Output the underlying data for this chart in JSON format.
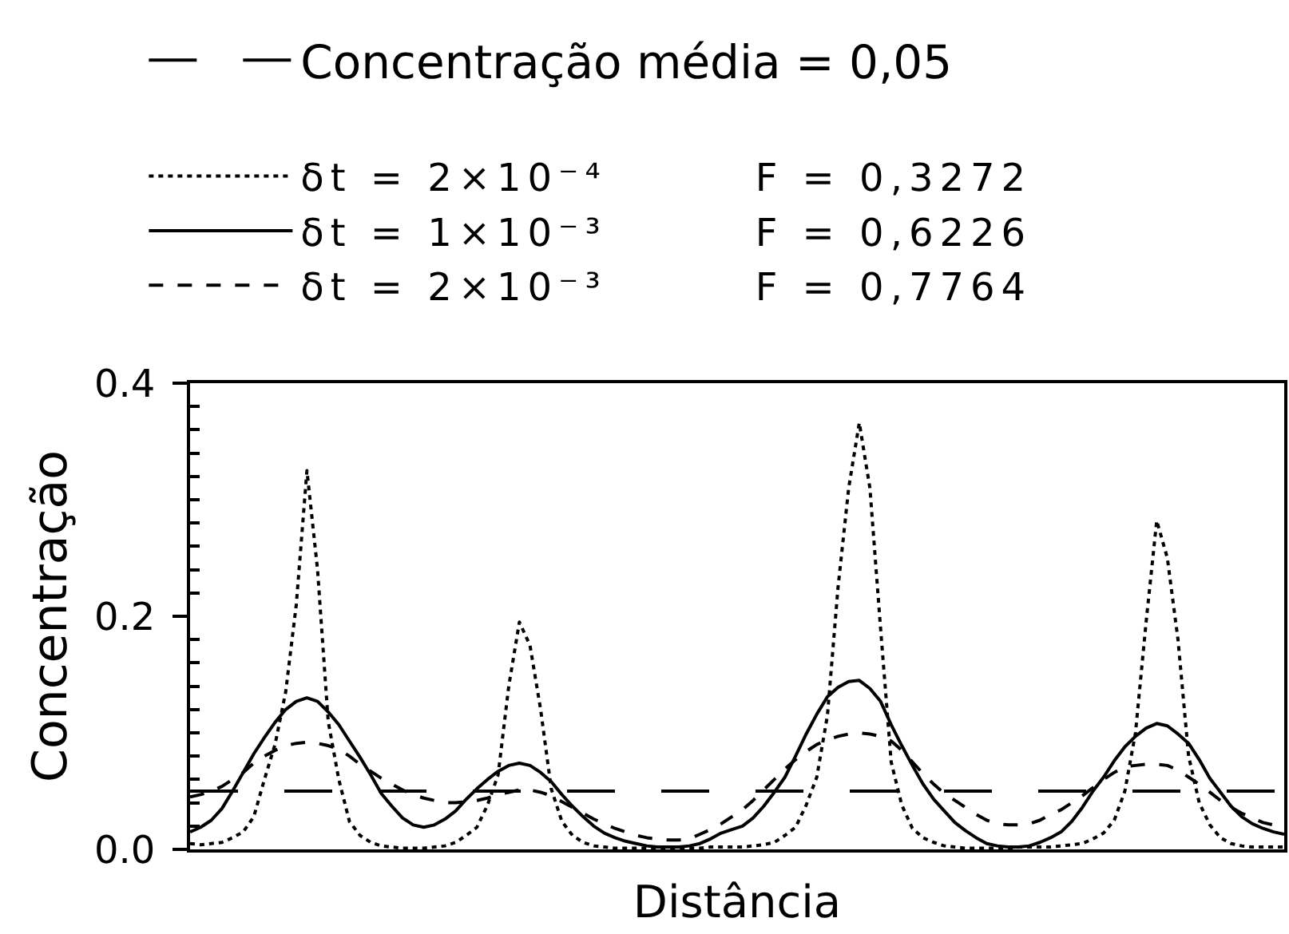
{
  "chart_data": {
    "type": "line",
    "xlabel": "Distância",
    "ylabel": "Concentração",
    "categories": [
      null,
      null,
      null,
      null,
      null,
      null,
      null,
      null,
      null,
      null,
      null,
      null,
      null,
      null,
      null,
      null,
      null,
      null,
      null,
      null,
      null,
      null,
      null,
      null,
      null,
      null,
      null,
      null,
      null,
      null,
      null,
      null,
      null,
      null,
      null,
      null,
      null,
      null,
      null,
      null,
      null,
      null,
      null,
      null,
      null,
      null,
      null,
      null,
      null,
      null,
      null,
      null,
      null,
      null,
      null,
      null,
      null,
      null,
      null,
      null,
      null,
      null,
      null,
      null,
      null,
      null,
      null,
      null,
      null,
      null,
      null,
      null,
      null,
      null,
      null,
      null,
      null,
      null,
      null,
      null,
      null,
      null,
      null,
      null,
      null,
      null,
      null,
      null,
      null,
      null,
      null,
      null,
      null,
      null,
      null,
      null,
      null,
      null,
      null,
      null,
      null,
      null,
      null,
      null
    ],
    "series": [
      {
        "name": "δt = 2×10⁻⁴        F = 0,3272",
        "color": "#000000",
        "line_style": "dotted",
        "values": [
          0.005,
          0.004,
          0.005,
          0.006,
          0.01,
          0.015,
          0.028,
          0.06,
          0.09,
          0.135,
          0.21,
          0.325,
          0.24,
          0.11,
          0.06,
          0.024,
          0.012,
          0.006,
          0.003,
          0.002,
          0.001,
          0.001,
          0.001,
          0.002,
          0.003,
          0.006,
          0.012,
          0.019,
          0.038,
          0.064,
          0.14,
          0.195,
          0.175,
          0.12,
          0.052,
          0.024,
          0.012,
          0.006,
          0.003,
          0.002,
          0.001,
          0.001,
          0.001,
          0.001,
          0.001,
          0.001,
          0.001,
          0.001,
          0.001,
          0.002,
          0.002,
          0.002,
          0.002,
          0.003,
          0.004,
          0.006,
          0.012,
          0.019,
          0.038,
          0.062,
          0.115,
          0.225,
          0.31,
          0.366,
          0.31,
          0.19,
          0.075,
          0.038,
          0.018,
          0.01,
          0.006,
          0.003,
          0.002,
          0.001,
          0.001,
          0.001,
          0.001,
          0.001,
          0.002,
          0.002,
          0.002,
          0.002,
          0.003,
          0.004,
          0.005,
          0.009,
          0.014,
          0.025,
          0.05,
          0.1,
          0.195,
          0.282,
          0.25,
          0.18,
          0.08,
          0.04,
          0.021,
          0.01,
          0.005,
          0.003,
          0.002,
          0.002,
          0.002,
          0.002
        ]
      },
      {
        "name": "δt = 1×10⁻³        F = 0,6226",
        "color": "#000000",
        "line_style": "solid",
        "values": [
          0.015,
          0.019,
          0.025,
          0.035,
          0.05,
          0.066,
          0.082,
          0.096,
          0.109,
          0.12,
          0.127,
          0.13,
          0.127,
          0.118,
          0.107,
          0.093,
          0.079,
          0.064,
          0.048,
          0.037,
          0.027,
          0.021,
          0.019,
          0.021,
          0.026,
          0.033,
          0.043,
          0.052,
          0.06,
          0.067,
          0.072,
          0.074,
          0.072,
          0.066,
          0.058,
          0.047,
          0.037,
          0.028,
          0.02,
          0.014,
          0.01,
          0.007,
          0.005,
          0.003,
          0.002,
          0.002,
          0.002,
          0.003,
          0.005,
          0.009,
          0.014,
          0.017,
          0.02,
          0.027,
          0.037,
          0.049,
          0.062,
          0.08,
          0.099,
          0.116,
          0.131,
          0.139,
          0.144,
          0.145,
          0.138,
          0.127,
          0.107,
          0.089,
          0.072,
          0.056,
          0.043,
          0.033,
          0.023,
          0.016,
          0.01,
          0.005,
          0.003,
          0.002,
          0.002,
          0.003,
          0.006,
          0.01,
          0.015,
          0.024,
          0.036,
          0.05,
          0.062,
          0.076,
          0.088,
          0.097,
          0.104,
          0.108,
          0.106,
          0.099,
          0.091,
          0.077,
          0.061,
          0.049,
          0.037,
          0.028,
          0.022,
          0.018,
          0.015,
          0.013
        ]
      },
      {
        "name": "δt = 2×10⁻³        F = 0,7764",
        "color": "#000000",
        "line_style": "dashed",
        "values": [
          0.045,
          0.047,
          0.05,
          0.054,
          0.06,
          0.066,
          0.074,
          0.08,
          0.085,
          0.089,
          0.091,
          0.092,
          0.091,
          0.089,
          0.086,
          0.08,
          0.073,
          0.067,
          0.061,
          0.056,
          0.051,
          0.047,
          0.044,
          0.042,
          0.04,
          0.04,
          0.041,
          0.042,
          0.044,
          0.047,
          0.049,
          0.051,
          0.051,
          0.049,
          0.046,
          0.041,
          0.036,
          0.031,
          0.026,
          0.022,
          0.018,
          0.015,
          0.012,
          0.01,
          0.009,
          0.008,
          0.008,
          0.009,
          0.013,
          0.017,
          0.022,
          0.028,
          0.034,
          0.042,
          0.051,
          0.06,
          0.069,
          0.077,
          0.084,
          0.09,
          0.094,
          0.097,
          0.099,
          0.1,
          0.099,
          0.097,
          0.093,
          0.085,
          0.075,
          0.065,
          0.056,
          0.048,
          0.042,
          0.036,
          0.03,
          0.025,
          0.022,
          0.021,
          0.021,
          0.022,
          0.025,
          0.03,
          0.034,
          0.04,
          0.046,
          0.053,
          0.06,
          0.066,
          0.071,
          0.072,
          0.073,
          0.073,
          0.072,
          0.068,
          0.062,
          0.056,
          0.049,
          0.042,
          0.036,
          0.031,
          0.027,
          0.023,
          0.021,
          0.02
        ]
      }
    ],
    "ylim": [
      0,
      0.4
    ],
    "yticks": [
      {
        "value": 0,
        "label": "0.0"
      },
      {
        "value": 0.02,
        "label": null
      },
      {
        "value": 0.04,
        "label": null
      },
      {
        "value": 0.06,
        "label": null
      },
      {
        "value": 0.08,
        "label": null
      },
      {
        "value": 0.1,
        "label": null
      },
      {
        "value": 0.12,
        "label": null
      },
      {
        "value": 0.14,
        "label": null
      },
      {
        "value": 0.16,
        "label": null
      },
      {
        "value": 0.18,
        "label": null
      },
      {
        "value": 0.2,
        "label": "0.2"
      },
      {
        "value": 0.22,
        "label": null
      },
      {
        "value": 0.24,
        "label": null
      },
      {
        "value": 0.26,
        "label": null
      },
      {
        "value": 0.28,
        "label": null
      },
      {
        "value": 0.3,
        "label": null
      },
      {
        "value": 0.32,
        "label": null
      },
      {
        "value": 0.34,
        "label": null
      },
      {
        "value": 0.36,
        "label": null
      },
      {
        "value": 0.38,
        "label": null
      },
      {
        "value": 0.4,
        "label": "0.4"
      }
    ],
    "ref_lines": [
      {
        "axis": "y",
        "value": 0.05,
        "label": "Concentração média = 0,05",
        "line_style": "dashed",
        "color": "#000000"
      }
    ],
    "legend": "top",
    "grid": false,
    "marker": "none"
  }
}
